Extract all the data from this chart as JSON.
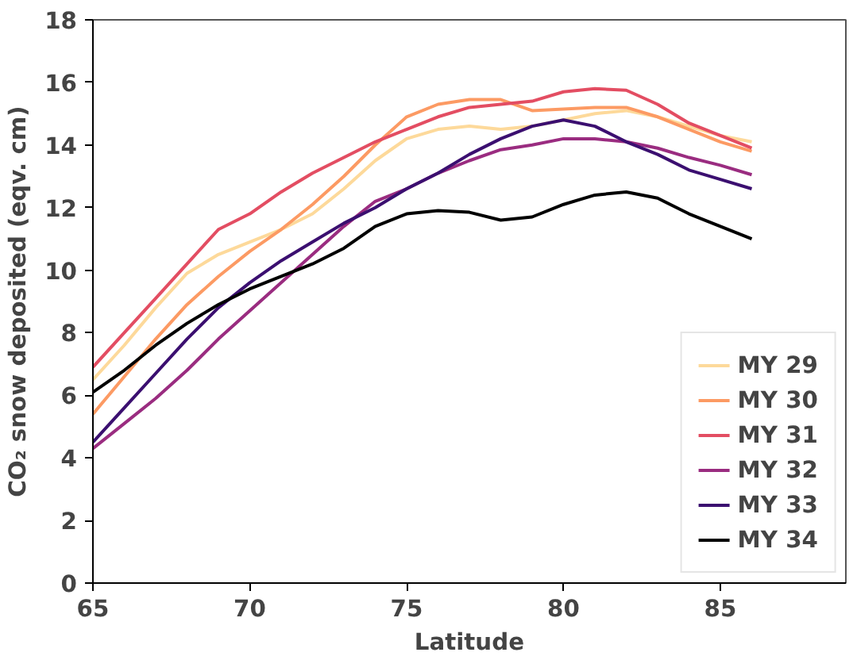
{
  "chart_data": {
    "type": "line",
    "xlabel": "Latitude",
    "ylabel": "CO₂ snow deposited (eqv. cm)",
    "x": [
      65,
      66,
      67,
      68,
      69,
      70,
      71,
      72,
      73,
      74,
      75,
      76,
      77,
      78,
      79,
      80,
      81,
      82,
      83,
      84,
      85,
      86
    ],
    "xlim": [
      65,
      89
    ],
    "ylim": [
      0,
      18
    ],
    "xticks": [
      65,
      70,
      75,
      80,
      85
    ],
    "yticks": [
      0,
      2,
      4,
      6,
      8,
      10,
      12,
      14,
      16,
      18
    ],
    "grid": false,
    "legend": "bottom right",
    "line_style": "solid",
    "series": [
      {
        "name": "MY 29",
        "color": "#fdd99a",
        "values": [
          6.5,
          7.6,
          8.8,
          9.9,
          10.5,
          10.9,
          11.3,
          11.8,
          12.6,
          13.5,
          14.2,
          14.5,
          14.6,
          14.5,
          14.6,
          14.8,
          15.0,
          15.1,
          14.9,
          14.6,
          14.3,
          14.1
        ]
      },
      {
        "name": "MY 30",
        "color": "#fc9a63",
        "values": [
          5.4,
          6.6,
          7.8,
          8.9,
          9.8,
          10.6,
          11.3,
          12.1,
          13.0,
          14.0,
          14.9,
          15.3,
          15.45,
          15.45,
          15.1,
          15.15,
          15.2,
          15.2,
          14.9,
          14.5,
          14.1,
          13.8
        ]
      },
      {
        "name": "MY 31",
        "color": "#e34d62",
        "values": [
          6.9,
          8.0,
          9.1,
          10.2,
          11.3,
          11.8,
          12.5,
          13.1,
          13.6,
          14.1,
          14.5,
          14.9,
          15.2,
          15.3,
          15.4,
          15.7,
          15.8,
          15.75,
          15.3,
          14.7,
          14.3,
          13.9
        ]
      },
      {
        "name": "MY 32",
        "color": "#9a2c80",
        "values": [
          4.3,
          5.1,
          5.9,
          6.8,
          7.8,
          8.7,
          9.6,
          10.5,
          11.4,
          12.2,
          12.6,
          13.1,
          13.5,
          13.85,
          14.0,
          14.2,
          14.2,
          14.1,
          13.9,
          13.6,
          13.35,
          13.05
        ]
      },
      {
        "name": "MY 33",
        "color": "#3b0f70",
        "values": [
          4.5,
          5.6,
          6.7,
          7.8,
          8.8,
          9.6,
          10.3,
          10.9,
          11.5,
          12.0,
          12.6,
          13.1,
          13.7,
          14.2,
          14.6,
          14.8,
          14.6,
          14.1,
          13.7,
          13.2,
          12.9,
          12.6
        ]
      },
      {
        "name": "MY 34",
        "color": "#000000",
        "values": [
          6.1,
          6.8,
          7.6,
          8.3,
          8.9,
          9.4,
          9.8,
          10.2,
          10.7,
          11.4,
          11.8,
          11.9,
          11.85,
          11.6,
          11.7,
          12.1,
          12.4,
          12.5,
          12.3,
          11.8,
          11.4,
          11.0
        ]
      }
    ]
  }
}
